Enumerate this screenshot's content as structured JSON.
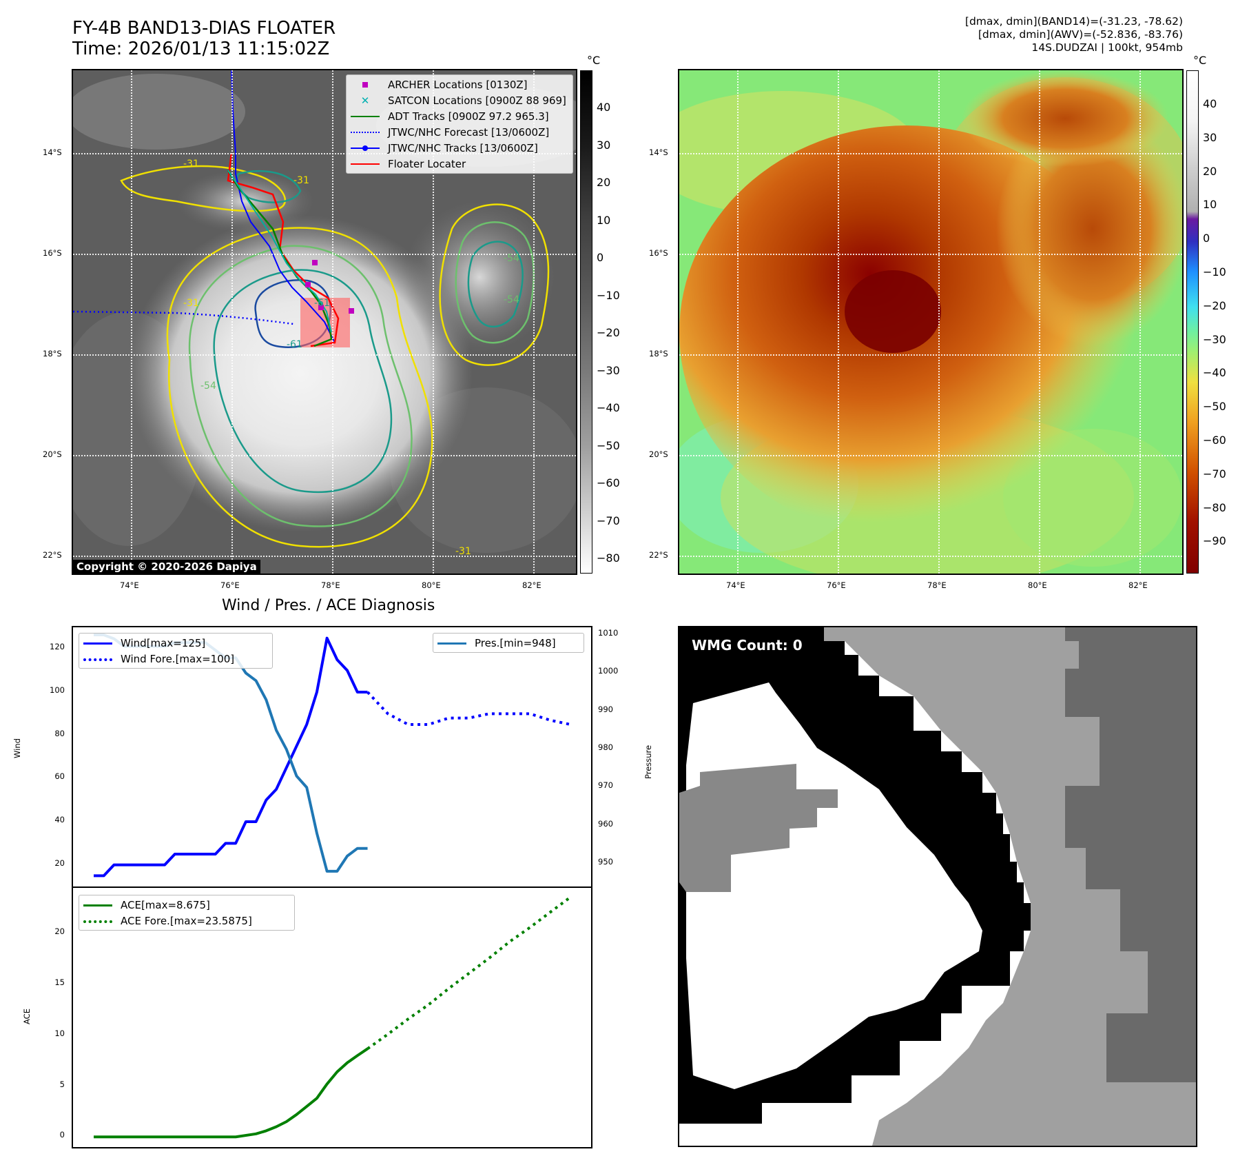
{
  "header": {
    "title_line1": "FY-4B BAND13-DIAS FLOATER",
    "title_line2": "Time: 2026/01/13 11:15:02Z",
    "info_line1": "[dmax, dmin](BAND14)=(-31.23, -78.62)",
    "info_line2": "[dmax, dmin](AWV)=(-52.836, -83.76)",
    "info_line3": "14S.DUDZAI | 100kt, 954mb"
  },
  "map_axes": {
    "lat_labels": [
      "14°S",
      "16°S",
      "18°S",
      "20°S",
      "22°S"
    ],
    "lon_labels": [
      "74°E",
      "76°E",
      "78°E",
      "80°E",
      "82°E"
    ]
  },
  "ir_panel": {
    "colorbar_unit": "°C",
    "colorbar_ticks": [
      "40",
      "30",
      "20",
      "10",
      "0",
      "−10",
      "−20",
      "−30",
      "−40",
      "−50",
      "−60",
      "−70",
      "−80"
    ],
    "contour_labels": [
      "-31",
      "-31",
      "-31",
      "-31",
      "-54",
      "-54",
      "-54",
      "-61",
      "-61"
    ],
    "legend": [
      {
        "label": "ARCHER Locations [0130Z]",
        "kind": "square",
        "color": "#c000c0"
      },
      {
        "label": "SATCON Locations [0900Z 88 969]",
        "kind": "x",
        "color": "#00b0b0"
      },
      {
        "label": "ADT Tracks [0900Z 97.2 965.3]",
        "kind": "line",
        "color": "#008000"
      },
      {
        "label": "JTWC/NHC Forecast [13/0600Z]",
        "kind": "dotted",
        "color": "#0000ff"
      },
      {
        "label": "JTWC/NHC Tracks [13/0600Z]",
        "kind": "line-dot",
        "color": "#0000ff"
      },
      {
        "label": "Floater Locater",
        "kind": "line",
        "color": "#ff0000"
      }
    ],
    "copyright": "Copyright © 2020-2026 Dapiya"
  },
  "wv_panel": {
    "colorbar_unit": "°C",
    "colorbar_ticks": [
      "40",
      "30",
      "20",
      "10",
      "0",
      "−10",
      "−20",
      "−30",
      "−40",
      "−50",
      "−60",
      "−70",
      "−80",
      "−90"
    ]
  },
  "diagnosis": {
    "title": "Wind / Pres. / ACE Diagnosis",
    "wind_ylabel": "Wind",
    "pressure_ylabel": "Pressure",
    "ace_ylabel": "ACE",
    "legend_wind": "Wind[max=125]",
    "legend_wind_fore": "Wind Fore.[max=100]",
    "legend_pres": "Pres.[min=948]",
    "legend_ace": "ACE[max=8.675]",
    "legend_ace_fore": "ACE Fore.[max=23.5875]"
  },
  "wmg_panel": {
    "label": "WMG Count: 0"
  },
  "chart_data": [
    {
      "type": "line",
      "title": "Wind / Pres. / ACE Diagnosis",
      "ylabel": "Wind",
      "y2label": "Pressure",
      "ylim": [
        10,
        130
      ],
      "y2lim": [
        944,
        1012
      ],
      "yticks": [
        20,
        40,
        60,
        80,
        100,
        120
      ],
      "y2ticks": [
        950,
        960,
        970,
        980,
        990,
        1000,
        1010
      ],
      "x": [
        0,
        1,
        2,
        3,
        4,
        5,
        6,
        7,
        8,
        9,
        10,
        11,
        12,
        13,
        14,
        15,
        16,
        17,
        18,
        19,
        20,
        21,
        22,
        23,
        24,
        25,
        26,
        27,
        28,
        29,
        30,
        31,
        32,
        33,
        34,
        35,
        36,
        37,
        38,
        39,
        40,
        41,
        42,
        43,
        44,
        45,
        46,
        47
      ],
      "series": [
        {
          "name": "Wind[max=125]",
          "color": "#0000ff",
          "style": "solid",
          "x": [
            0,
            1,
            2,
            3,
            4,
            5,
            6,
            7,
            8,
            9,
            10,
            11,
            12,
            13,
            14,
            15,
            16,
            17,
            18,
            19,
            20,
            21,
            22,
            23,
            24,
            25,
            26,
            27
          ],
          "values": [
            15,
            15,
            20,
            20,
            20,
            20,
            20,
            20,
            25,
            25,
            25,
            25,
            25,
            30,
            30,
            40,
            40,
            50,
            55,
            65,
            75,
            85,
            100,
            125,
            115,
            110,
            100,
            100
          ]
        },
        {
          "name": "Wind Fore.[max=100]",
          "color": "#0000ff",
          "style": "dotted",
          "x": [
            27,
            29,
            31,
            33,
            35,
            37,
            39,
            41,
            43,
            45,
            47
          ],
          "values": [
            100,
            90,
            85,
            85,
            88,
            88,
            90,
            90,
            90,
            87,
            85
          ]
        },
        {
          "name": "Pres.[min=948]",
          "color": "#1f77b4",
          "style": "solid",
          "axis": "right",
          "x": [
            0,
            1,
            2,
            3,
            4,
            5,
            6,
            7,
            8,
            9,
            10,
            11,
            12,
            13,
            14,
            15,
            16,
            17,
            18,
            19,
            20,
            21,
            22,
            23,
            24,
            25,
            26,
            27
          ],
          "values": [
            1010,
            1010,
            1009,
            1007,
            1007,
            1007,
            1007,
            1007,
            1008,
            1008,
            1008,
            1008,
            1006,
            1004,
            1004,
            1000,
            998,
            993,
            985,
            980,
            973,
            970,
            958,
            948,
            948,
            952,
            954,
            954
          ]
        }
      ]
    },
    {
      "type": "line",
      "ylabel": "ACE",
      "ylim": [
        -1,
        24.5
      ],
      "yticks": [
        0,
        5,
        10,
        15,
        20
      ],
      "series": [
        {
          "name": "ACE[max=8.675]",
          "color": "#008000",
          "style": "solid",
          "x": [
            0,
            2,
            4,
            6,
            8,
            10,
            12,
            14,
            16,
            17,
            18,
            19,
            20,
            21,
            22,
            23,
            24,
            25,
            26,
            27
          ],
          "values": [
            0,
            0,
            0,
            0,
            0,
            0,
            0,
            0,
            0.3,
            0.6,
            1.0,
            1.5,
            2.2,
            3.0,
            3.8,
            5.2,
            6.4,
            7.3,
            8.0,
            8.675
          ]
        },
        {
          "name": "ACE Fore.[max=23.5875]",
          "color": "#008000",
          "style": "dotted",
          "x": [
            27,
            29,
            31,
            33,
            35,
            37,
            39,
            41,
            43,
            45,
            47
          ],
          "values": [
            8.675,
            10.1,
            11.6,
            13.0,
            14.6,
            16.1,
            17.6,
            19.2,
            20.6,
            22.1,
            23.5875
          ]
        }
      ]
    }
  ]
}
